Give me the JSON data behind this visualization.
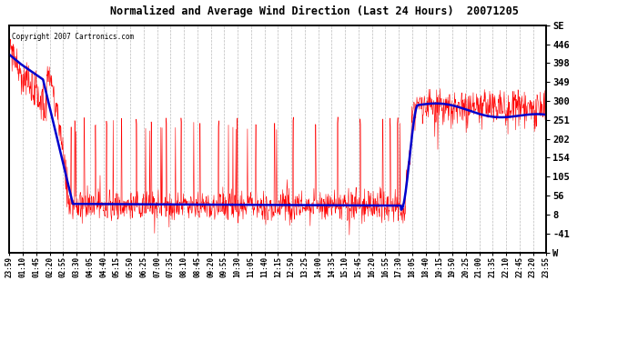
{
  "title": "Normalized and Average Wind Direction (Last 24 Hours)  20071205",
  "copyright": "Copyright 2007 Cartronics.com",
  "yticks_right": [
    "SE",
    "446",
    "398",
    "349",
    "300",
    "251",
    "202",
    "154",
    "105",
    "56",
    "8",
    "-41",
    "W"
  ],
  "ytick_values": [
    495,
    446,
    398,
    349,
    300,
    251,
    202,
    154,
    105,
    56,
    8,
    -41,
    -90
  ],
  "ymin": -90,
  "ymax": 495,
  "xtick_labels": [
    "23:59",
    "01:10",
    "01:45",
    "02:20",
    "02:55",
    "03:30",
    "04:05",
    "04:40",
    "05:15",
    "05:50",
    "06:25",
    "07:00",
    "07:35",
    "08:10",
    "08:45",
    "09:20",
    "09:55",
    "10:30",
    "11:05",
    "11:40",
    "12:15",
    "12:50",
    "13:25",
    "14:00",
    "14:35",
    "15:10",
    "15:45",
    "16:20",
    "16:55",
    "17:30",
    "18:05",
    "18:40",
    "19:15",
    "19:50",
    "20:25",
    "21:00",
    "21:35",
    "22:10",
    "22:45",
    "23:20",
    "23:55"
  ],
  "bg_color": "#ffffff",
  "plot_bg_color": "#ffffff",
  "grid_color": "#aaaaaa",
  "red_color": "#ff0000",
  "blue_color": "#0000cc",
  "title_color": "#000000",
  "border_color": "#000000"
}
